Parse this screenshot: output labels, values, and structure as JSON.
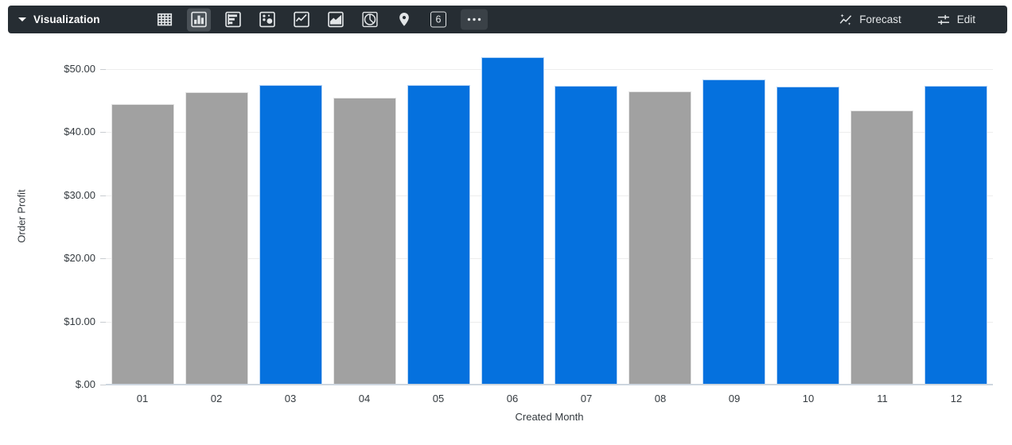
{
  "toolbar": {
    "title": "Visualization",
    "forecast_label": "Forecast",
    "edit_label": "Edit",
    "single_value_glyph": "6",
    "vis_types": [
      {
        "name": "table",
        "selected": false
      },
      {
        "name": "column",
        "selected": true
      },
      {
        "name": "bar",
        "selected": false
      },
      {
        "name": "scatter",
        "selected": false
      },
      {
        "name": "line",
        "selected": false
      },
      {
        "name": "area",
        "selected": false
      },
      {
        "name": "pie",
        "selected": false
      },
      {
        "name": "map",
        "selected": false
      },
      {
        "name": "single-value",
        "selected": false
      },
      {
        "name": "more",
        "selected": false
      }
    ],
    "colors": {
      "background": "#262D33",
      "selected_background": "#4A5157",
      "icon": "#E2E5E7"
    }
  },
  "chart_data": {
    "type": "bar",
    "title": "",
    "xlabel": "Created Month",
    "ylabel": "Order Profit",
    "categories": [
      "01",
      "02",
      "03",
      "04",
      "05",
      "06",
      "07",
      "08",
      "09",
      "10",
      "11",
      "12"
    ],
    "values": [
      44.5,
      46.3,
      47.5,
      45.5,
      47.5,
      51.9,
      47.3,
      46.5,
      48.4,
      47.2,
      43.5,
      47.3
    ],
    "bar_colors": [
      "gray",
      "gray",
      "blue",
      "gray",
      "blue",
      "blue",
      "blue",
      "gray",
      "blue",
      "blue",
      "gray",
      "blue"
    ],
    "colors": {
      "blue": "#0571DE",
      "gray": "#A1A1A1"
    },
    "ylim": [
      0,
      53.4
    ],
    "yticks": [
      {
        "label": "$.00",
        "value": 0
      },
      {
        "label": "$10.00",
        "value": 10
      },
      {
        "label": "$20.00",
        "value": 20
      },
      {
        "label": "$30.00",
        "value": 30
      },
      {
        "label": "$40.00",
        "value": 40
      },
      {
        "label": "$50.00",
        "value": 50
      }
    ],
    "grid": true,
    "legend": "none"
  }
}
